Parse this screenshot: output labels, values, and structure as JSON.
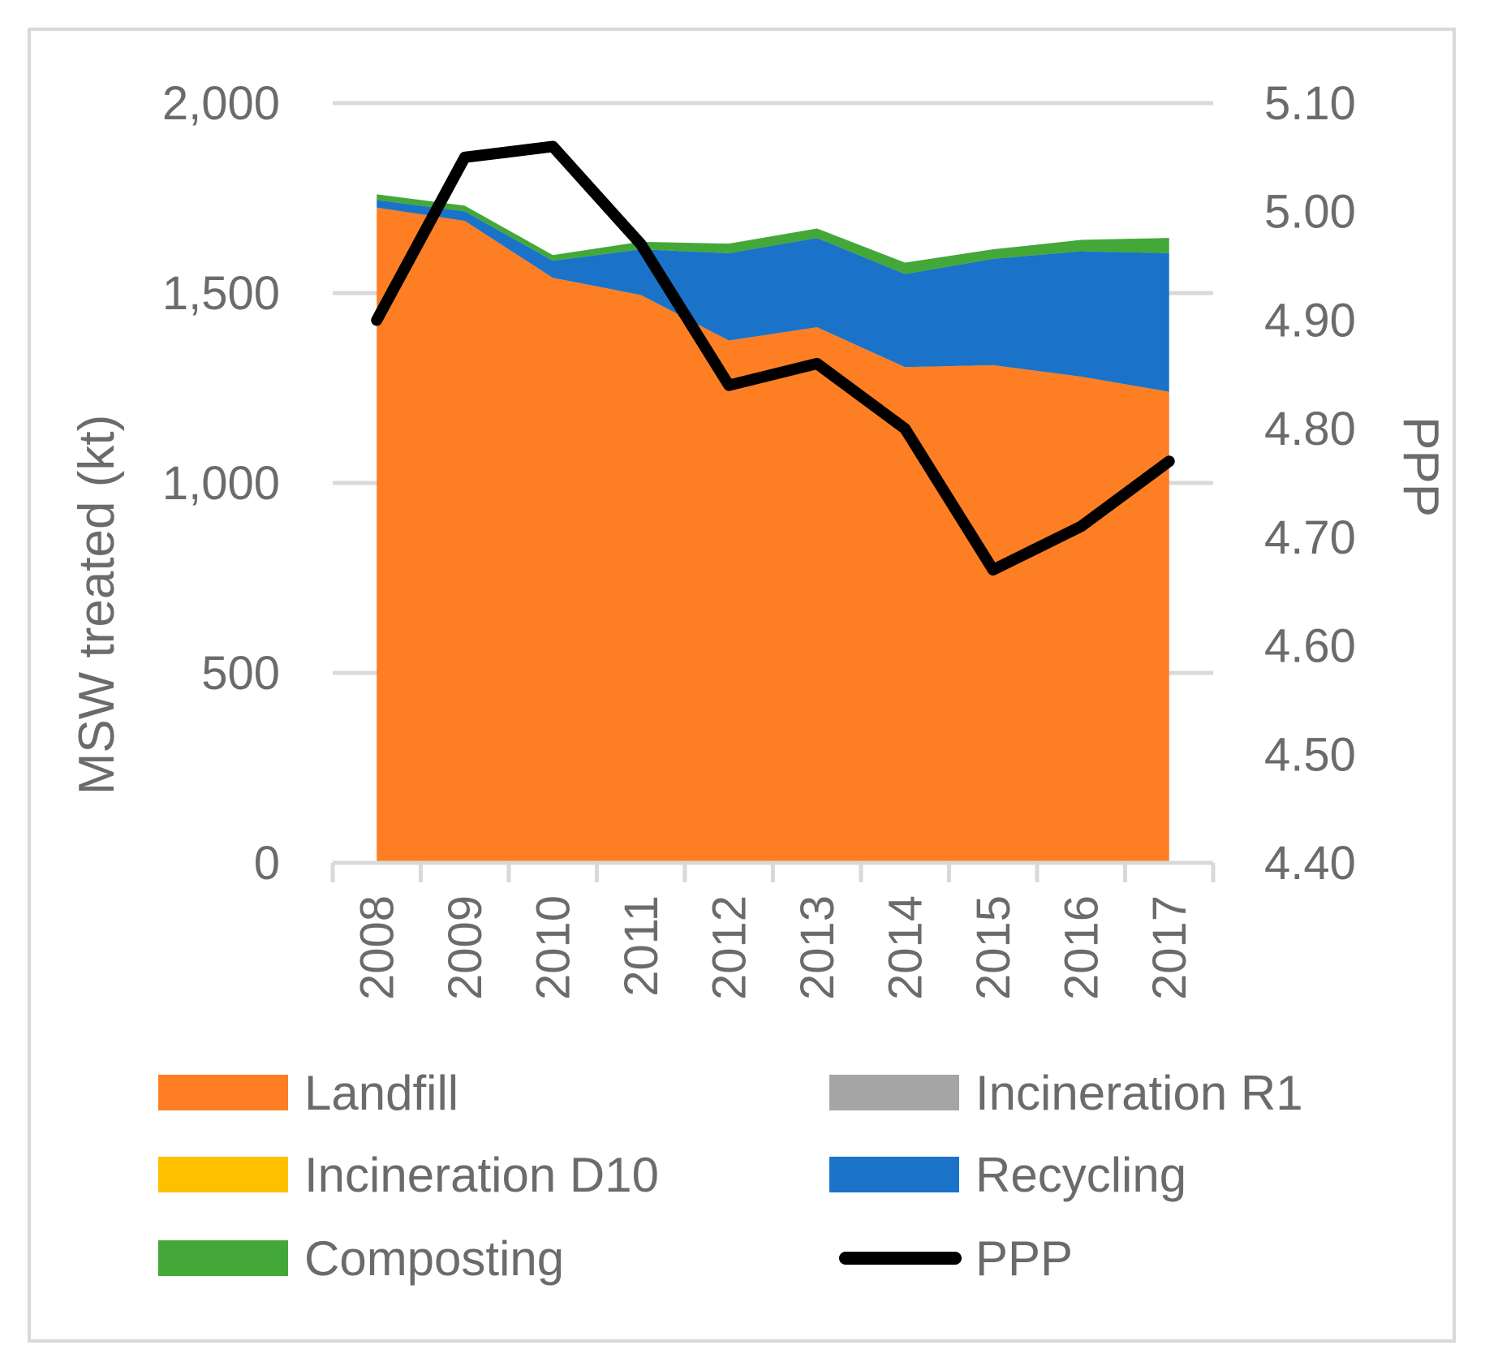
{
  "chart_data": {
    "type": "area",
    "stacked": true,
    "categories": [
      "2008",
      "2009",
      "2010",
      "2011",
      "2012",
      "2013",
      "2014",
      "2015",
      "2016",
      "2017"
    ],
    "series": [
      {
        "name": "Landfill",
        "axis": "left",
        "color": "#fd7e23",
        "values": [
          1725,
          1690,
          1540,
          1495,
          1375,
          1410,
          1305,
          1310,
          1280,
          1240
        ]
      },
      {
        "name": "Incineration R1",
        "axis": "left",
        "color": "#a5a5a5",
        "values": [
          0,
          0,
          0,
          0,
          0,
          0,
          0,
          0,
          0,
          0
        ]
      },
      {
        "name": "Incineration D10",
        "axis": "left",
        "color": "#ffc000",
        "values": [
          0,
          0,
          0,
          0,
          0,
          0,
          0,
          0,
          0,
          0
        ]
      },
      {
        "name": "Recycling",
        "axis": "left",
        "color": "#1a73c8",
        "values": [
          20,
          25,
          45,
          120,
          230,
          235,
          245,
          280,
          330,
          365
        ]
      },
      {
        "name": "Composting",
        "axis": "left",
        "color": "#43a838",
        "values": [
          15,
          15,
          15,
          20,
          25,
          25,
          30,
          25,
          30,
          40
        ]
      },
      {
        "name": "PPP",
        "axis": "right",
        "type": "line",
        "color": "#000000",
        "values": [
          4.9,
          5.05,
          5.06,
          4.97,
          4.84,
          4.86,
          4.8,
          4.67,
          4.71,
          4.77
        ]
      }
    ],
    "left_axis": {
      "title": "MSW treated (kt)",
      "min": 0,
      "max": 2000,
      "ticks": [
        0,
        500,
        1000,
        1500,
        2000
      ],
      "tick_labels": [
        "0",
        "500",
        "1,000",
        "1,500",
        "2,000"
      ]
    },
    "right_axis": {
      "title": "PPP",
      "min": 4.4,
      "max": 5.1,
      "ticks": [
        4.4,
        4.5,
        4.6,
        4.7,
        4.8,
        4.9,
        5.0,
        5.1
      ],
      "tick_labels": [
        "4.40",
        "4.50",
        "4.60",
        "4.70",
        "4.80",
        "4.90",
        "5.00",
        "5.10"
      ]
    },
    "grid": true,
    "legend_position": "bottom",
    "legend_order": [
      "Landfill",
      "Incineration R1",
      "Incineration D10",
      "Recycling",
      "Composting",
      "PPP"
    ]
  }
}
